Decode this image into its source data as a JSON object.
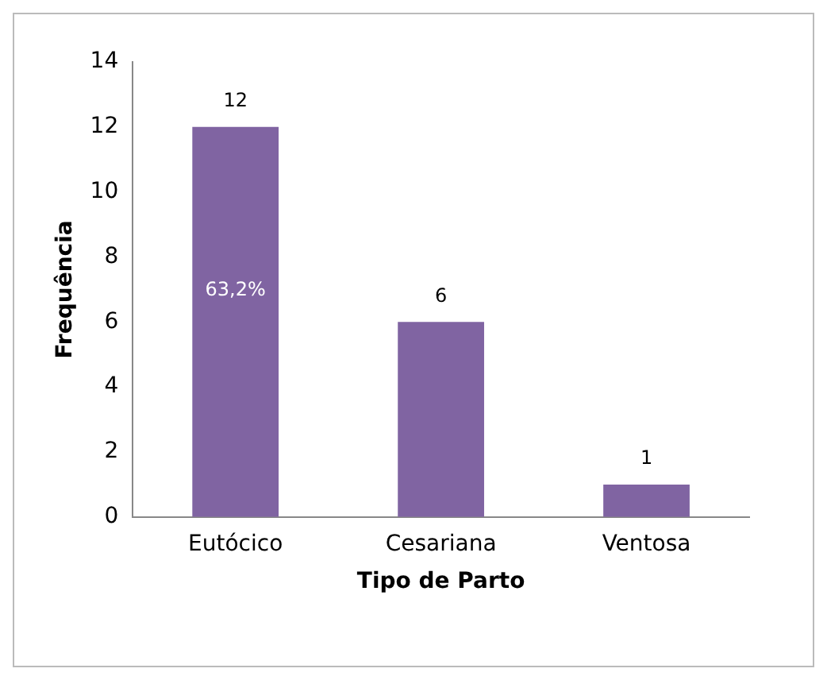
{
  "chart_data": {
    "type": "bar",
    "xlabel": "Tipo de Parto",
    "ylabel": "Frequência",
    "categories": [
      "Eutócico",
      "Cesariana",
      "Ventosa"
    ],
    "values": [
      12,
      6,
      1
    ],
    "color": "#8064a2",
    "ylim": [
      0,
      14
    ],
    "yticks": [
      0,
      2,
      4,
      6,
      8,
      10,
      12,
      14
    ],
    "grid": false,
    "legend": false,
    "data_labels": true,
    "annotations": [
      "63,2%"
    ]
  }
}
